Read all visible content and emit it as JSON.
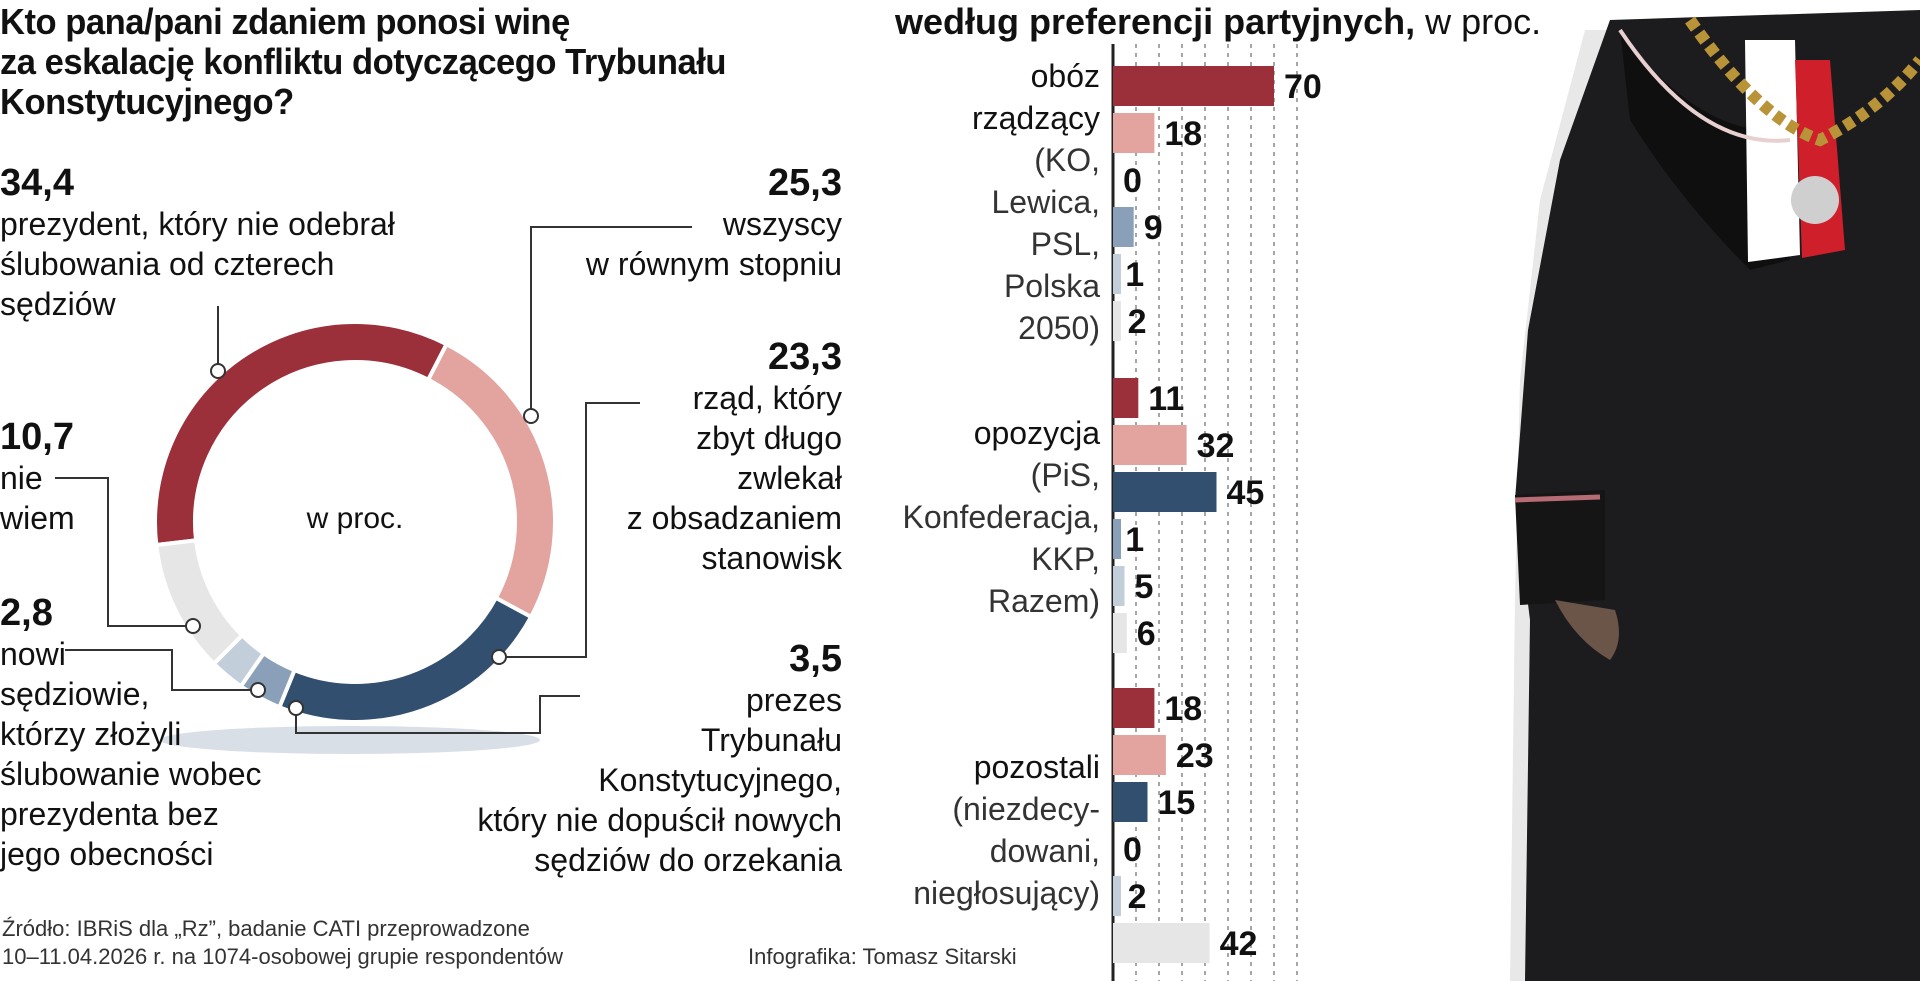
{
  "question": {
    "lines": [
      "Kto pana/pani zdaniem ponosi winę",
      "za eskalację konfliktu dotyczącego Trybunału",
      "Konstytucyjnego?"
    ]
  },
  "donut": {
    "center_label": "w proc.",
    "slices": [
      {
        "id": "prezydent",
        "value": 34.4,
        "value_text": "34,4",
        "color": "#9b2f3a",
        "label_lines": [
          "prezydent, który nie odebrał",
          "ślubowania od czterech",
          "sędziów"
        ]
      },
      {
        "id": "wszyscy",
        "value": 25.3,
        "value_text": "25,3",
        "color": "#e3a4a0",
        "label_lines": [
          "wszyscy",
          "w równym stopniu"
        ]
      },
      {
        "id": "rzad",
        "value": 23.3,
        "value_text": "23,3",
        "color": "#324f70",
        "label_lines": [
          "rząd, który",
          "zbyt długo",
          "zwlekał",
          "z obsadzaniem",
          "stanowisk"
        ]
      },
      {
        "id": "prezes",
        "value": 3.5,
        "value_text": "3,5",
        "color": "#8aa0b8",
        "label_lines": [
          "prezes",
          "Trybunału",
          "Konstytucyjnego,",
          "który nie dopuścił nowych",
          "sędziów do orzekania"
        ]
      },
      {
        "id": "nowi",
        "value": 2.8,
        "value_text": "2,8",
        "color": "#c2cfdb",
        "label_lines": [
          "nowi",
          "sędziowie,",
          "którzy złożyli",
          "ślubowanie wobec",
          "prezydenta bez",
          "jego obecności"
        ]
      },
      {
        "id": "niewiem",
        "value": 10.7,
        "value_text": "10,7",
        "color": "#e6e6e6",
        "label_lines": [
          "nie",
          "wiem"
        ]
      }
    ]
  },
  "source": {
    "lines": [
      "Źródło: IBRiS dla „Rz”, badanie CATI przeprowadzone",
      "10–11.04.2026 r. na 1074-osobowej grupie respondentów"
    ],
    "credit": "Infografika: Tomasz Sitarski"
  },
  "right_title": {
    "bold": "według preferencji partyjnych,",
    "normal": " w proc."
  },
  "chart_data": {
    "type": "bar",
    "orientation": "horizontal",
    "title": "według preferencji partyjnych, w proc.",
    "xlim": [
      0,
      80
    ],
    "grid": "vertical dashed",
    "series": [
      {
        "name": "prezydent, który nie odebrał ślubowania od czterech sędziów",
        "color": "#9b2f3a"
      },
      {
        "name": "wszyscy w równym stopniu",
        "color": "#e3a4a0"
      },
      {
        "name": "rząd, który zbyt długo zwlekał z obsadzaniem stanowisk",
        "color": "#324f70"
      },
      {
        "name": "prezes Trybunału Konstytucyjnego",
        "color": "#8aa0b8"
      },
      {
        "name": "nowi sędziowie",
        "color": "#c2cfdb"
      },
      {
        "name": "nie wiem",
        "color": "#e6e6e6"
      }
    ],
    "groups": [
      {
        "label_lines": [
          "obóz",
          "rządzący"
        ],
        "sub_lines": [
          "(KO,",
          "Lewica,",
          "PSL,",
          "Polska",
          "2050)"
        ],
        "values": [
          70,
          18,
          0,
          9,
          1,
          2
        ]
      },
      {
        "label_lines": [
          "opozycja"
        ],
        "sub_lines": [
          "(PiS,",
          "Konfederacja,",
          "KKP,",
          "Razem)"
        ],
        "values": [
          11,
          32,
          45,
          1,
          5,
          6
        ]
      },
      {
        "label_lines": [
          "pozostali"
        ],
        "sub_lines": [
          "(niezdecy-",
          "dowani,",
          "niegłosujący)"
        ],
        "values": [
          18,
          23,
          15,
          0,
          2,
          42
        ]
      }
    ]
  }
}
